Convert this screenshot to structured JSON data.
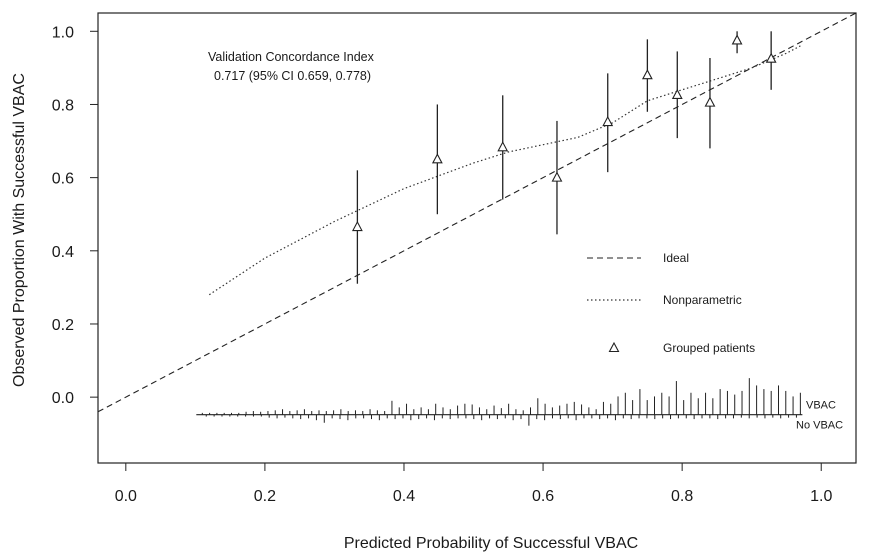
{
  "chart_data": {
    "type": "scatter",
    "xlabel": "Predicted Probability of Successful VBAC",
    "ylabel": "Observed Proportion With Successful VBAC",
    "xlim": [
      -0.04,
      1.05
    ],
    "ylim": [
      -0.18,
      1.05
    ],
    "x_ticks": [
      0.0,
      0.2,
      0.4,
      0.6,
      0.8,
      1.0
    ],
    "x_tick_labels": [
      "0.0",
      "0.2",
      "0.4",
      "0.6",
      "0.8",
      "1.0"
    ],
    "y_ticks": [
      0.0,
      0.2,
      0.4,
      0.6,
      0.8,
      1.0
    ],
    "y_tick_labels": [
      "0.0",
      "0.2",
      "0.4",
      "0.6",
      "0.8",
      "1.0"
    ],
    "grid": false,
    "legend_position": "center-right",
    "annotation": {
      "line1": "Validation Concordance Index",
      "line2": "0.717 (95% CI 0.659, 0.778)"
    },
    "ideal_line": {
      "name": "Ideal",
      "style": "dashed",
      "x": [
        -0.04,
        1.05
      ],
      "y": [
        -0.04,
        1.05
      ]
    },
    "nonparametric": {
      "name": "Nonparametric",
      "style": "dotted",
      "x": [
        0.12,
        0.2,
        0.3,
        0.4,
        0.5,
        0.55,
        0.6,
        0.65,
        0.7,
        0.75,
        0.8,
        0.85,
        0.9,
        0.95,
        0.97
      ],
      "y": [
        0.28,
        0.38,
        0.48,
        0.57,
        0.64,
        0.67,
        0.69,
        0.71,
        0.75,
        0.81,
        0.84,
        0.87,
        0.9,
        0.94,
        0.96
      ]
    },
    "grouped_patients": {
      "name": "Grouped patients",
      "points": [
        {
          "x": 0.333,
          "y": 0.465,
          "lo": 0.31,
          "hi": 0.62
        },
        {
          "x": 0.448,
          "y": 0.65,
          "lo": 0.5,
          "hi": 0.8
        },
        {
          "x": 0.542,
          "y": 0.683,
          "lo": 0.54,
          "hi": 0.825
        },
        {
          "x": 0.62,
          "y": 0.6,
          "lo": 0.445,
          "hi": 0.755
        },
        {
          "x": 0.693,
          "y": 0.752,
          "lo": 0.615,
          "hi": 0.885
        },
        {
          "x": 0.75,
          "y": 0.88,
          "lo": 0.78,
          "hi": 0.978
        },
        {
          "x": 0.793,
          "y": 0.826,
          "lo": 0.708,
          "hi": 0.945
        },
        {
          "x": 0.84,
          "y": 0.805,
          "lo": 0.68,
          "hi": 0.927
        },
        {
          "x": 0.879,
          "y": 0.975,
          "lo": 0.94,
          "hi": 1.0
        },
        {
          "x": 0.928,
          "y": 0.925,
          "lo": 0.84,
          "hi": 1.0
        }
      ]
    },
    "rug": {
      "baseline_y": -0.048,
      "x_range": [
        0.11,
        0.97
      ],
      "vbac_label": "VBAC",
      "novbac_label": "No VBAC",
      "vbac_heights": [
        0.005,
        0.005,
        0.005,
        0.005,
        0.005,
        0.005,
        0.008,
        0.01,
        0.008,
        0.01,
        0.012,
        0.015,
        0.01,
        0.012,
        0.015,
        0.01,
        0.012,
        0.01,
        0.012,
        0.015,
        0.01,
        0.012,
        0.01,
        0.015,
        0.012,
        0.01,
        0.038,
        0.02,
        0.03,
        0.015,
        0.02,
        0.015,
        0.03,
        0.02,
        0.015,
        0.025,
        0.03,
        0.028,
        0.02,
        0.015,
        0.025,
        0.018,
        0.03,
        0.015,
        0.012,
        0.02,
        0.045,
        0.03,
        0.02,
        0.025,
        0.03,
        0.035,
        0.028,
        0.02,
        0.015,
        0.035,
        0.03,
        0.05,
        0.06,
        0.04,
        0.07,
        0.04,
        0.05,
        0.06,
        0.05,
        0.092,
        0.04,
        0.06,
        0.045,
        0.06,
        0.045,
        0.07,
        0.065,
        0.055,
        0.065,
        0.1,
        0.08,
        0.07,
        0.065,
        0.08,
        0.065,
        0.05,
        0.06
      ],
      "novbac_heights": [
        0.005,
        0.005,
        0.005,
        0.005,
        0.005,
        0.005,
        0.005,
        0.005,
        0.008,
        0.01,
        0.008,
        0.01,
        0.012,
        0.01,
        0.015,
        0.022,
        0.01,
        0.012,
        0.015,
        0.01,
        0.01,
        0.012,
        0.015,
        0.01,
        0.012,
        0.01,
        0.015,
        0.012,
        0.01,
        0.015,
        0.01,
        0.012,
        0.01,
        0.01,
        0.012,
        0.015,
        0.01,
        0.012,
        0.01,
        0.015,
        0.012,
        0.03,
        0.012,
        0.015,
        0.01,
        0.012,
        0.01,
        0.015,
        0.01,
        0.01,
        0.012,
        0.01,
        0.015,
        0.01,
        0.012,
        0.01,
        0.01,
        0.012,
        0.01,
        0.012,
        0.01,
        0.01,
        0.012,
        0.01,
        0.01,
        0.012,
        0.01,
        0.01,
        0.008,
        0.01,
        0.008,
        0.01,
        0.008,
        0.01,
        0.008,
        0.008
      ]
    }
  }
}
